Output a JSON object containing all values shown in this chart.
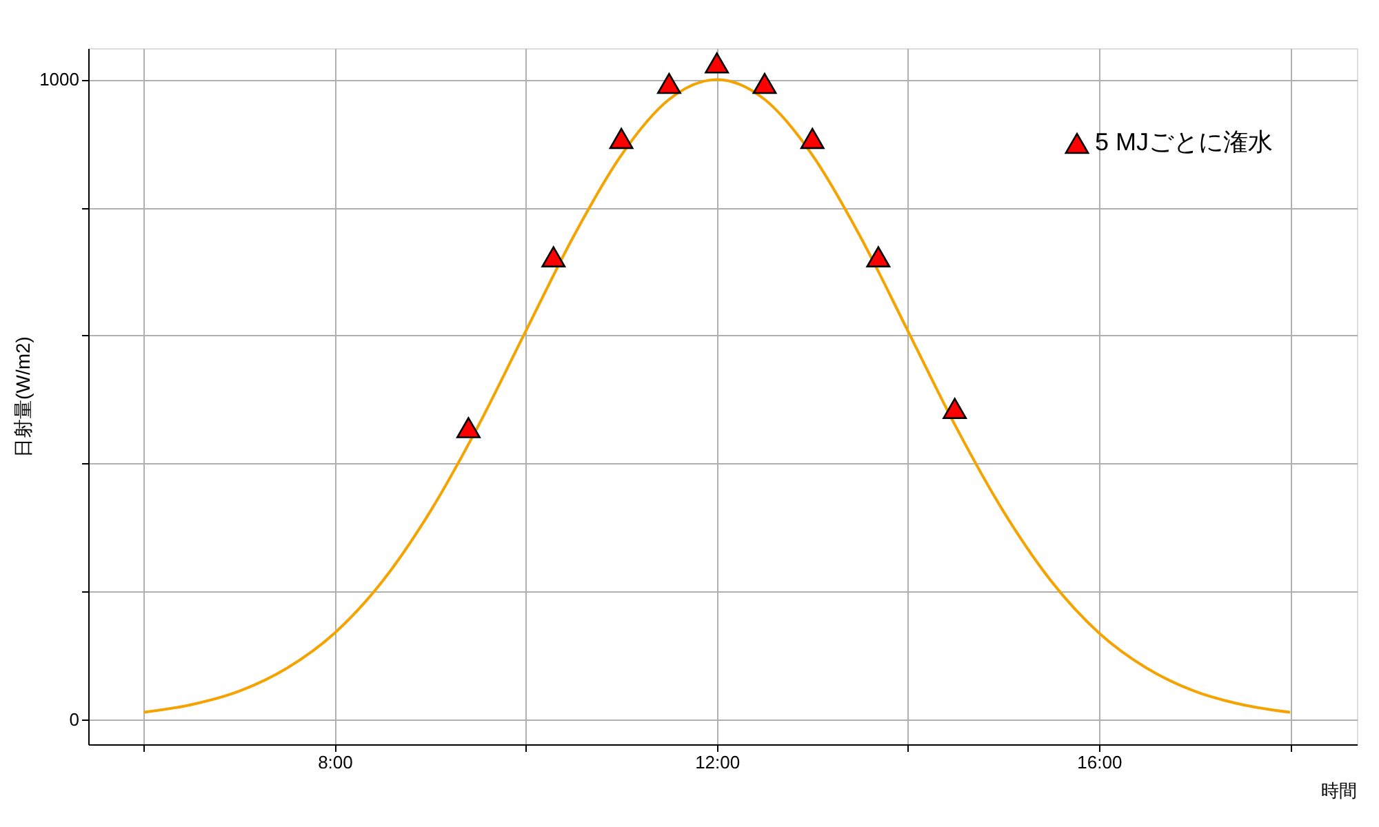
{
  "chart_data": {
    "type": "line",
    "xlabel": "時間",
    "ylabel": "日射量(W/m2)",
    "xlim": [
      5.42,
      18.7
    ],
    "ylim": [
      -39,
      1049
    ],
    "xticks": [
      {
        "value": 6,
        "label": null
      },
      {
        "value": 8,
        "label": "8:00"
      },
      {
        "value": 10,
        "label": null
      },
      {
        "value": 12,
        "label": "12:00"
      },
      {
        "value": 14,
        "label": null
      },
      {
        "value": 16,
        "label": "16:00"
      },
      {
        "value": 18,
        "label": null
      }
    ],
    "yticks": [
      0,
      {
        "value": 200,
        "label": null
      },
      {
        "value": 400,
        "label": null
      },
      {
        "value": 600,
        "label": null
      },
      {
        "value": 800,
        "label": null
      },
      1000
    ],
    "grid": true,
    "legend": "top right",
    "series": [
      {
        "color": "#f5a300",
        "marker": "none",
        "line_style": "solid",
        "x": [
          6,
          6.5,
          7,
          7.5,
          8,
          8.5,
          9,
          9.5,
          10,
          10.5,
          11,
          11.5,
          12,
          12.5,
          13,
          13.5,
          14,
          14.5,
          15,
          15.5,
          16,
          16.5,
          17,
          17.5,
          18
        ],
        "values": [
          11,
          23,
          44,
          80,
          135,
          216,
          325,
          458,
          607,
          755,
          882,
          969,
          1000,
          969,
          882,
          755,
          607,
          458,
          325,
          216,
          135,
          80,
          44,
          23,
          11
        ]
      },
      {
        "type": "scatter",
        "name": "5 MJごとに潅水",
        "color": "#ff0000",
        "marker": "triangle",
        "x": [
          9.4,
          10.29,
          11.0,
          11.5,
          12.0,
          12.5,
          13.0,
          13.69,
          14.49
        ],
        "values": [
          456,
          723,
          908,
          994,
          1026,
          994,
          908,
          723,
          486
        ]
      }
    ]
  }
}
